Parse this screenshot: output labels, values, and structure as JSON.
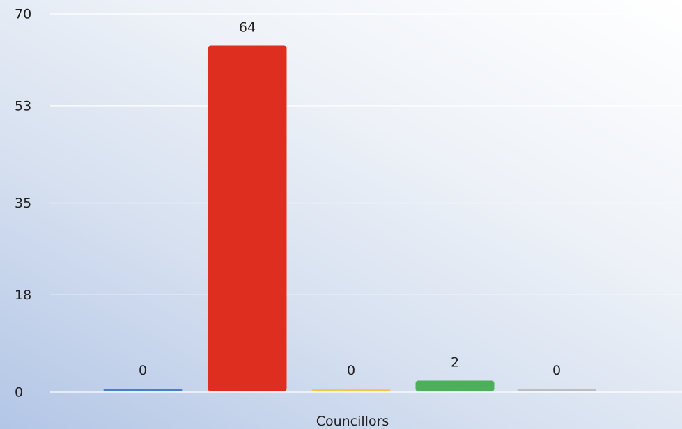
{
  "chart_data": {
    "type": "bar",
    "xlabel": "Councillors",
    "ylabel": "",
    "ylim": [
      0,
      70
    ],
    "yticks": [
      0,
      18,
      35,
      53,
      70
    ],
    "grid": true,
    "legend": "none",
    "categories": [
      "",
      "",
      "",
      "",
      ""
    ],
    "values": [
      0,
      64,
      0,
      2,
      0
    ],
    "colors": [
      "#4a7fc8",
      "#dd2e1f",
      "#f1c74d",
      "#4caf5a",
      "#bdbdbd"
    ]
  }
}
